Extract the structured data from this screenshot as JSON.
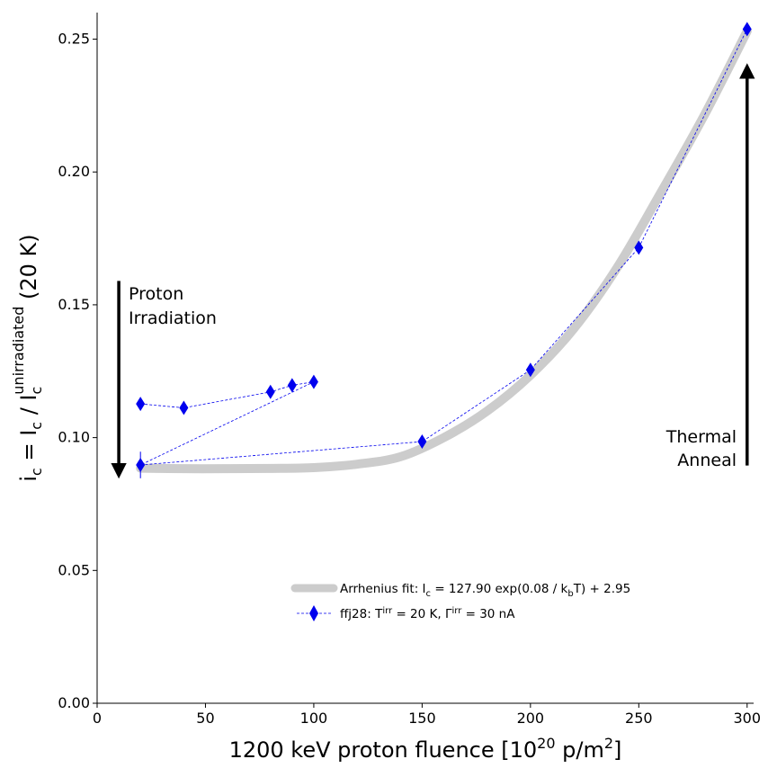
{
  "chart_data": {
    "type": "line",
    "xlabel": {
      "prefix": "1200 keV proton fluence [10",
      "sup1": "20",
      "mid": " p/m",
      "sup2": "2",
      "suffix": "]"
    },
    "ylabel": {
      "lhs_i": "i",
      "lhs_sub": "c",
      "eq": " = I",
      "sub1": "c",
      "slash": " / I",
      "sub2": "c",
      "sup2": "unirradiated",
      "suffix": " (20 K)"
    },
    "xlim": [
      0,
      303
    ],
    "ylim": [
      0,
      0.26
    ],
    "xticks": [
      0,
      50,
      100,
      150,
      200,
      250,
      300
    ],
    "xtick_labels": [
      "0",
      "50",
      "100",
      "150",
      "200",
      "250",
      "300"
    ],
    "yticks": [
      0.0,
      0.05,
      0.1,
      0.15,
      0.2,
      0.25
    ],
    "ytick_labels": [
      "0.00",
      "0.05",
      "0.10",
      "0.15",
      "0.20",
      "0.25"
    ],
    "series": [
      {
        "kind": "data",
        "legend_label": "ffj28: T",
        "legend_sup1": "irr",
        "legend_mid": " = 20 K, Γ",
        "legend_sup2": "irr",
        "legend_suffix": " = 30 nA",
        "color": "#0000ee",
        "x": [
          20,
          40,
          80,
          90,
          100,
          20,
          150,
          200,
          250,
          300
        ],
        "y": [
          0.1127,
          0.1112,
          0.1172,
          0.1197,
          0.121,
          0.0897,
          0.0985,
          0.1255,
          0.1715,
          0.2538
        ],
        "yerr": [
          0.001,
          0.001,
          0.001,
          0.001,
          0.001,
          0.005,
          0.001,
          0.001,
          0.001,
          0.001
        ]
      },
      {
        "kind": "fit",
        "legend_label": "Arrhenius fit: I",
        "legend_sub": "c",
        "legend_mid": " = 127.90 exp(0.08 / k",
        "legend_sub2": "b",
        "legend_suffix": "T) + 2.95",
        "color": "#cccccc",
        "x": [
          20,
          40,
          60,
          80,
          100,
          120,
          140,
          160,
          180,
          200,
          220,
          240,
          260,
          280,
          300
        ],
        "y": [
          0.0885,
          0.0883,
          0.0883,
          0.0884,
          0.0887,
          0.09,
          0.0928,
          0.1,
          0.11,
          0.1235,
          0.141,
          0.164,
          0.192,
          0.221,
          0.253
        ]
      }
    ],
    "annotations": [
      {
        "id": "irradiation",
        "lines": [
          "Proton",
          "Irradiation"
        ],
        "arrow": "down",
        "x": 10,
        "y_from": 0.159,
        "y_to": 0.0875
      },
      {
        "id": "anneal",
        "lines": [
          "Thermal",
          "Anneal"
        ],
        "arrow": "up",
        "x": 300,
        "y_from": 0.0895,
        "y_to": 0.238
      }
    ],
    "legend_position": "lower-right",
    "grid": false
  }
}
